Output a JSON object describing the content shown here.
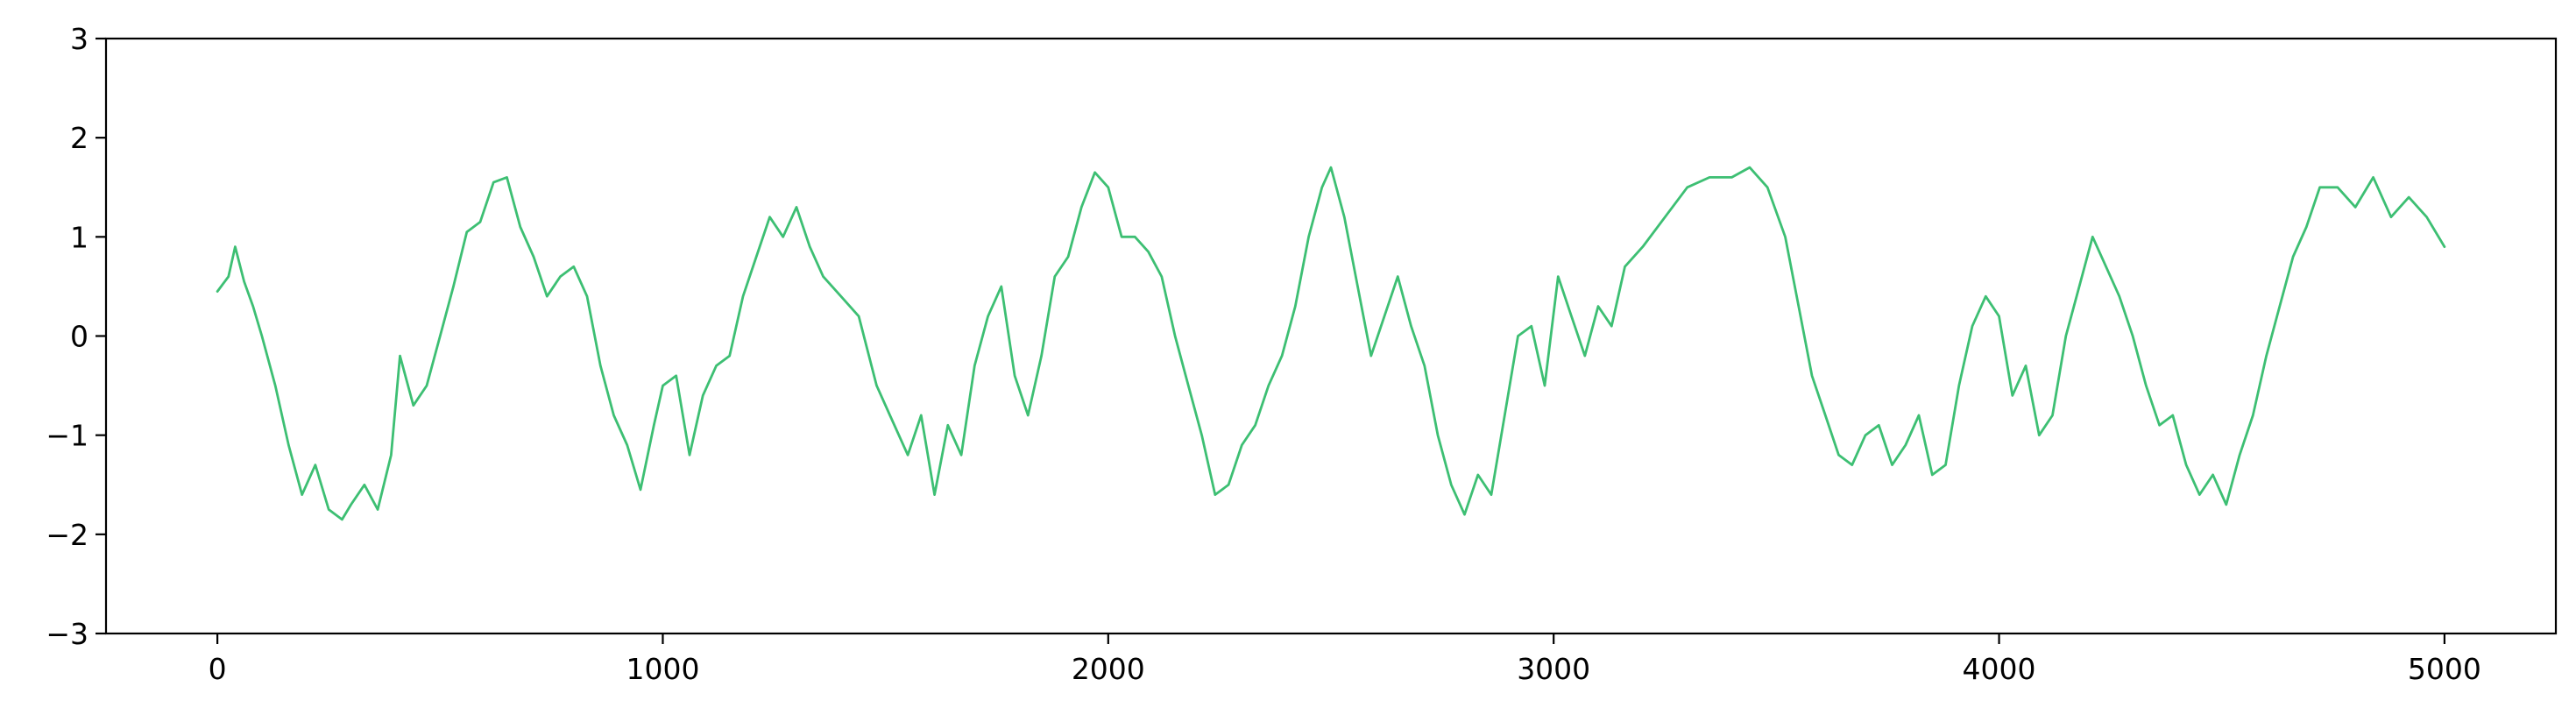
{
  "chart_data": {
    "type": "line",
    "title": "",
    "xlabel": "",
    "ylabel": "",
    "xlim": [
      -250,
      5250
    ],
    "ylim": [
      -3,
      3
    ],
    "x_ticks": [
      0,
      1000,
      2000,
      3000,
      4000,
      5000
    ],
    "x_tick_labels": [
      "0",
      "1000",
      "2000",
      "3000",
      "4000",
      "5000"
    ],
    "y_ticks": [
      -3,
      -2,
      -1,
      0,
      1,
      2,
      3
    ],
    "y_tick_labels": [
      "−3",
      "−2",
      "−1",
      "0",
      "1",
      "2",
      "3"
    ],
    "grid": false,
    "legend": "none",
    "series": [
      {
        "color": "#3dbf73",
        "x": [
          0,
          25,
          40,
          60,
          80,
          100,
          130,
          160,
          190,
          220,
          250,
          280,
          300,
          330,
          360,
          390,
          410,
          440,
          470,
          500,
          530,
          560,
          590,
          620,
          650,
          680,
          710,
          740,
          770,
          800,
          830,
          860,
          890,
          920,
          950,
          980,
          1000,
          1030,
          1060,
          1090,
          1120,
          1150,
          1180,
          1210,
          1240,
          1270,
          1300,
          1330,
          1360,
          1400,
          1440,
          1480,
          1510,
          1550,
          1580,
          1610,
          1640,
          1670,
          1700,
          1730,
          1760,
          1790,
          1820,
          1850,
          1880,
          1910,
          1940,
          1970,
          2000,
          2030,
          2060,
          2090,
          2120,
          2150,
          2180,
          2210,
          2240,
          2270,
          2300,
          2330,
          2360,
          2390,
          2420,
          2450,
          2480,
          2500,
          2530,
          2560,
          2590,
          2620,
          2650,
          2680,
          2710,
          2740,
          2770,
          2800,
          2830,
          2860,
          2890,
          2920,
          2950,
          2980,
          3010,
          3040,
          3070,
          3100,
          3130,
          3160,
          3200,
          3250,
          3300,
          3350,
          3400,
          3440,
          3480,
          3520,
          3550,
          3580,
          3610,
          3640,
          3670,
          3700,
          3730,
          3760,
          3790,
          3820,
          3850,
          3880,
          3910,
          3940,
          3970,
          4000,
          4030,
          4060,
          4090,
          4120,
          4150,
          4180,
          4210,
          4240,
          4270,
          4300,
          4330,
          4360,
          4390,
          4420,
          4450,
          4480,
          4510,
          4540,
          4570,
          4600,
          4630,
          4660,
          4690,
          4720,
          4760,
          4800,
          4840,
          4880,
          4920,
          4960,
          5000
        ],
        "y": [
          0.45,
          0.6,
          0.9,
          0.55,
          0.3,
          0.0,
          -0.5,
          -1.1,
          -1.6,
          -1.3,
          -1.75,
          -1.85,
          -1.7,
          -1.5,
          -1.75,
          -1.2,
          -0.2,
          -0.7,
          -0.5,
          0.0,
          0.5,
          1.05,
          1.15,
          1.55,
          1.6,
          1.1,
          0.8,
          0.4,
          0.6,
          0.7,
          0.4,
          -0.3,
          -0.8,
          -1.1,
          -1.55,
          -0.9,
          -0.5,
          -0.4,
          -1.2,
          -0.6,
          -0.3,
          -0.2,
          0.4,
          0.8,
          1.2,
          1.0,
          1.3,
          0.9,
          0.6,
          0.4,
          0.2,
          -0.5,
          -0.8,
          -1.2,
          -0.8,
          -1.6,
          -0.9,
          -1.2,
          -0.3,
          0.2,
          0.5,
          -0.4,
          -0.8,
          -0.2,
          0.6,
          0.8,
          1.3,
          1.65,
          1.5,
          1.0,
          1.0,
          0.85,
          0.6,
          0.0,
          -0.5,
          -1.0,
          -1.6,
          -1.5,
          -1.1,
          -0.9,
          -0.5,
          -0.2,
          0.3,
          1.0,
          1.5,
          1.7,
          1.2,
          0.5,
          -0.2,
          0.2,
          0.6,
          0.1,
          -0.3,
          -1.0,
          -1.5,
          -1.8,
          -1.4,
          -1.6,
          -0.8,
          0.0,
          0.1,
          -0.5,
          0.6,
          0.2,
          -0.2,
          0.3,
          0.1,
          0.7,
          0.9,
          1.2,
          1.5,
          1.6,
          1.6,
          1.7,
          1.5,
          1.0,
          0.3,
          -0.4,
          -0.8,
          -1.2,
          -1.3,
          -1.0,
          -0.9,
          -1.3,
          -1.1,
          -0.8,
          -1.4,
          -1.3,
          -0.5,
          0.1,
          0.4,
          0.2,
          -0.6,
          -0.3,
          -1.0,
          -0.8,
          0.0,
          0.5,
          1.0,
          0.7,
          0.4,
          0.0,
          -0.5,
          -0.9,
          -0.8,
          -1.3,
          -1.6,
          -1.4,
          -1.7,
          -1.2,
          -0.8,
          -0.2,
          0.3,
          0.8,
          1.1,
          1.5,
          1.5,
          1.3,
          1.6,
          1.2,
          1.4,
          1.2,
          0.9
        ]
      }
    ]
  }
}
